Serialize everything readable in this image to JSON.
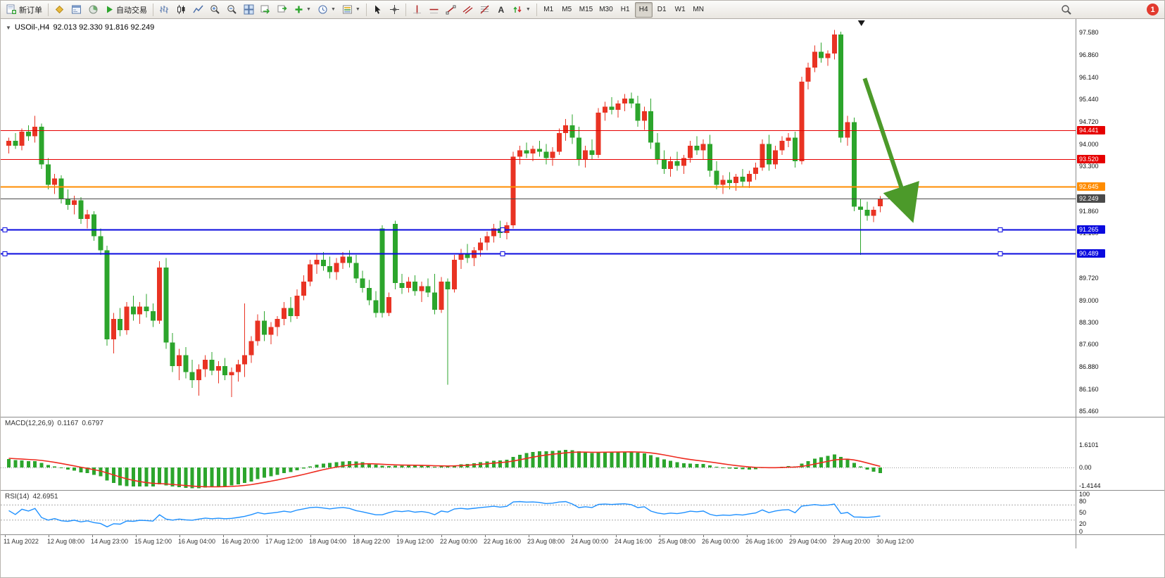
{
  "glyphs": {
    "chart_menu": "▼",
    "dropdown": "▼",
    "text_tool": "A"
  },
  "toolbar": {
    "new_order_label": "新订单",
    "autotrading_label": "自动交易",
    "badge": "1",
    "timeframes": [
      {
        "label": "M1",
        "active": false
      },
      {
        "label": "M5",
        "active": false
      },
      {
        "label": "M15",
        "active": false
      },
      {
        "label": "M30",
        "active": false
      },
      {
        "label": "H1",
        "active": false
      },
      {
        "label": "H4",
        "active": true
      },
      {
        "label": "D1",
        "active": false
      },
      {
        "label": "W1",
        "active": false
      },
      {
        "label": "MN",
        "active": false
      }
    ]
  },
  "chart": {
    "title": "USOil-,H4",
    "ohlc": "92.013 92.330 91.816 92.249",
    "colors": {
      "up": "#e93323",
      "down": "#2ca52c"
    }
  },
  "chart_data": {
    "type": "candlestick",
    "symbol": "USOil-",
    "period": "H4",
    "current_bar": {
      "open": 92.013,
      "high": 92.33,
      "low": 91.816,
      "close": 92.249
    },
    "y_axis_labels": [
      "97.580",
      "96.860",
      "96.140",
      "95.440",
      "94.720",
      "94.000",
      "93.300",
      "92.580",
      "91.860",
      "91.160",
      "90.440",
      "89.720",
      "89.000",
      "88.300",
      "87.600",
      "86.880",
      "86.160",
      "85.460"
    ],
    "time_labels": [
      "11 Aug 2022",
      "12 Aug 08:00",
      "14 Aug 23:00",
      "15 Aug 12:00",
      "16 Aug 04:00",
      "16 Aug 20:00",
      "17 Aug 12:00",
      "18 Aug 04:00",
      "18 Aug 22:00",
      "19 Aug 12:00",
      "22 Aug 00:00",
      "22 Aug 16:00",
      "23 Aug 08:00",
      "24 Aug 00:00",
      "24 Aug 16:00",
      "25 Aug 08:00",
      "26 Aug 00:00",
      "26 Aug 16:00",
      "29 Aug 04:00",
      "29 Aug 20:00",
      "30 Aug 12:00"
    ],
    "hlines": [
      {
        "price": 94.441,
        "label": "94.441",
        "color": "#e60000",
        "width": 1,
        "selected": false
      },
      {
        "price": 93.52,
        "label": "93.520",
        "color": "#e60000",
        "width": 1,
        "selected": false
      },
      {
        "price": 92.645,
        "label": "92.645",
        "color": "#ff8c00",
        "width": 2,
        "selected": false
      },
      {
        "price": 91.265,
        "label": "91.265",
        "color": "#0a0adf",
        "width": 2,
        "selected": true
      },
      {
        "price": 90.489,
        "label": "90.489",
        "color": "#0a0adf",
        "width": 2,
        "selected": true
      }
    ],
    "current_price": {
      "value": 92.249,
      "label": "92.249",
      "color": "#4a4a4a"
    },
    "arrow": {
      "from_index": 131,
      "from_price": 96.1,
      "to_index": 137.5,
      "to_price": 92.05,
      "color": "#4c9a2a"
    },
    "time_marker_index": 130.5,
    "candles": [
      [
        93.95,
        94.2,
        93.7,
        94.1
      ],
      [
        94.1,
        94.35,
        93.85,
        93.95
      ],
      [
        93.95,
        94.5,
        93.8,
        94.4
      ],
      [
        94.4,
        94.6,
        94.1,
        94.25
      ],
      [
        94.25,
        94.9,
        94.05,
        94.55
      ],
      [
        94.55,
        94.65,
        93.2,
        93.35
      ],
      [
        93.35,
        93.55,
        92.55,
        92.7
      ],
      [
        92.7,
        93.05,
        92.4,
        92.9
      ],
      [
        92.9,
        93.0,
        92.1,
        92.25
      ],
      [
        92.25,
        92.55,
        91.9,
        92.05
      ],
      [
        92.05,
        92.35,
        91.75,
        92.2
      ],
      [
        92.2,
        92.3,
        91.45,
        91.6
      ],
      [
        91.6,
        91.9,
        91.3,
        91.75
      ],
      [
        91.75,
        91.85,
        90.9,
        91.05
      ],
      [
        91.05,
        91.3,
        90.45,
        90.6
      ],
      [
        90.6,
        90.75,
        87.55,
        87.75
      ],
      [
        87.75,
        88.6,
        87.3,
        88.4
      ],
      [
        88.4,
        88.75,
        87.85,
        88.05
      ],
      [
        88.05,
        88.95,
        87.9,
        88.8
      ],
      [
        88.8,
        89.15,
        88.35,
        88.55
      ],
      [
        88.55,
        88.95,
        88.25,
        88.8
      ],
      [
        88.8,
        89.2,
        88.45,
        88.65
      ],
      [
        88.65,
        88.9,
        88.15,
        88.35
      ],
      [
        88.35,
        90.25,
        88.25,
        90.05
      ],
      [
        90.05,
        90.35,
        87.45,
        87.65
      ],
      [
        87.65,
        87.95,
        86.7,
        86.9
      ],
      [
        86.9,
        87.45,
        86.45,
        87.25
      ],
      [
        87.25,
        87.5,
        86.5,
        86.7
      ],
      [
        86.7,
        87.1,
        86.2,
        86.45
      ],
      [
        86.45,
        86.95,
        85.95,
        86.8
      ],
      [
        86.8,
        87.25,
        86.55,
        87.1
      ],
      [
        87.1,
        87.35,
        86.6,
        86.75
      ],
      [
        86.75,
        87.05,
        86.35,
        86.9
      ],
      [
        86.9,
        87.15,
        86.45,
        86.6
      ],
      [
        86.6,
        86.85,
        85.9,
        86.7
      ],
      [
        86.7,
        87.1,
        86.4,
        86.95
      ],
      [
        86.95,
        88.9,
        86.55,
        87.25
      ],
      [
        87.25,
        87.85,
        87.0,
        87.7
      ],
      [
        87.7,
        88.55,
        87.55,
        88.35
      ],
      [
        88.35,
        88.65,
        87.7,
        87.9
      ],
      [
        87.9,
        88.3,
        87.6,
        88.15
      ],
      [
        88.15,
        88.5,
        87.85,
        88.4
      ],
      [
        88.4,
        88.95,
        88.2,
        88.75
      ],
      [
        88.75,
        89.1,
        88.3,
        88.5
      ],
      [
        88.5,
        89.35,
        88.4,
        89.15
      ],
      [
        89.15,
        89.8,
        89.0,
        89.6
      ],
      [
        89.6,
        90.3,
        89.45,
        90.15
      ],
      [
        90.15,
        90.5,
        89.85,
        90.3
      ],
      [
        90.3,
        90.55,
        89.95,
        90.1
      ],
      [
        90.1,
        90.4,
        89.7,
        89.9
      ],
      [
        89.9,
        90.35,
        89.65,
        90.2
      ],
      [
        90.2,
        90.55,
        90.0,
        90.4
      ],
      [
        90.4,
        90.6,
        90.05,
        90.2
      ],
      [
        90.2,
        90.45,
        89.55,
        89.7
      ],
      [
        89.7,
        89.95,
        89.25,
        89.4
      ],
      [
        89.4,
        89.65,
        88.85,
        89.0
      ],
      [
        89.0,
        89.3,
        88.45,
        88.6
      ],
      [
        91.3,
        91.4,
        88.45,
        88.6
      ],
      [
        88.6,
        89.25,
        88.5,
        89.1
      ],
      [
        91.45,
        91.55,
        89.35,
        89.55
      ],
      [
        89.55,
        89.85,
        89.2,
        89.4
      ],
      [
        89.4,
        89.75,
        89.25,
        89.6
      ],
      [
        89.6,
        89.8,
        89.15,
        89.3
      ],
      [
        89.3,
        89.6,
        88.95,
        89.45
      ],
      [
        89.45,
        89.7,
        89.1,
        89.25
      ],
      [
        89.25,
        89.85,
        88.55,
        88.7
      ],
      [
        88.7,
        89.75,
        88.6,
        89.6
      ],
      [
        89.6,
        89.7,
        86.3,
        89.35
      ],
      [
        89.35,
        90.45,
        89.25,
        90.3
      ],
      [
        90.3,
        90.65,
        90.0,
        90.5
      ],
      [
        90.5,
        90.8,
        90.2,
        90.35
      ],
      [
        90.35,
        90.7,
        90.1,
        90.6
      ],
      [
        90.6,
        91.0,
        90.4,
        90.85
      ],
      [
        90.85,
        91.2,
        90.6,
        91.05
      ],
      [
        91.05,
        91.45,
        90.85,
        91.3
      ],
      [
        91.3,
        91.55,
        91.0,
        91.15
      ],
      [
        91.15,
        91.5,
        90.95,
        91.4
      ],
      [
        91.4,
        93.75,
        91.3,
        93.6
      ],
      [
        93.6,
        93.95,
        93.35,
        93.8
      ],
      [
        93.8,
        94.05,
        93.55,
        93.7
      ],
      [
        93.7,
        93.95,
        93.45,
        93.85
      ],
      [
        93.85,
        94.1,
        93.6,
        93.75
      ],
      [
        93.75,
        94.0,
        93.35,
        93.55
      ],
      [
        93.55,
        93.9,
        93.3,
        93.75
      ],
      [
        93.75,
        94.5,
        93.65,
        94.35
      ],
      [
        94.35,
        94.8,
        94.1,
        94.6
      ],
      [
        94.6,
        94.95,
        94.0,
        94.2
      ],
      [
        94.2,
        94.55,
        93.3,
        93.5
      ],
      [
        93.5,
        93.95,
        93.25,
        93.8
      ],
      [
        93.8,
        94.15,
        93.5,
        93.65
      ],
      [
        93.65,
        95.15,
        93.55,
        95.0
      ],
      [
        95.0,
        95.35,
        94.75,
        95.2
      ],
      [
        95.2,
        95.5,
        94.95,
        95.1
      ],
      [
        95.1,
        95.4,
        94.85,
        95.3
      ],
      [
        95.3,
        95.6,
        95.05,
        95.45
      ],
      [
        95.45,
        95.65,
        95.15,
        95.3
      ],
      [
        95.3,
        95.55,
        94.55,
        94.75
      ],
      [
        94.75,
        95.2,
        94.45,
        95.05
      ],
      [
        95.05,
        95.45,
        93.85,
        94.05
      ],
      [
        94.05,
        94.35,
        93.35,
        93.5
      ],
      [
        93.5,
        93.8,
        93.05,
        93.2
      ],
      [
        93.2,
        93.6,
        92.95,
        93.45
      ],
      [
        93.45,
        93.75,
        93.15,
        93.3
      ],
      [
        93.3,
        93.65,
        93.05,
        93.55
      ],
      [
        93.55,
        94.1,
        93.4,
        93.95
      ],
      [
        93.95,
        94.25,
        93.65,
        93.8
      ],
      [
        93.8,
        94.15,
        93.5,
        94.0
      ],
      [
        94.0,
        94.3,
        92.95,
        93.15
      ],
      [
        93.15,
        93.45,
        92.55,
        92.7
      ],
      [
        92.7,
        93.0,
        92.4,
        92.85
      ],
      [
        92.85,
        93.1,
        92.55,
        92.75
      ],
      [
        92.75,
        93.05,
        92.5,
        92.95
      ],
      [
        92.95,
        93.2,
        92.65,
        92.8
      ],
      [
        92.8,
        93.15,
        92.6,
        93.05
      ],
      [
        93.05,
        93.4,
        92.85,
        93.25
      ],
      [
        93.25,
        94.15,
        93.15,
        94.0
      ],
      [
        94.0,
        94.3,
        93.15,
        93.35
      ],
      [
        93.35,
        93.95,
        93.2,
        93.8
      ],
      [
        93.8,
        94.25,
        93.65,
        94.1
      ],
      [
        94.1,
        94.35,
        93.9,
        94.2
      ],
      [
        94.2,
        94.4,
        93.25,
        93.45
      ],
      [
        93.45,
        96.15,
        93.35,
        96.0
      ],
      [
        96.0,
        96.6,
        95.75,
        96.45
      ],
      [
        96.45,
        97.15,
        96.3,
        96.95
      ],
      [
        96.95,
        97.25,
        96.6,
        96.75
      ],
      [
        96.75,
        97.0,
        96.5,
        96.9
      ],
      [
        96.9,
        97.65,
        96.7,
        97.5
      ],
      [
        97.5,
        97.6,
        94.05,
        94.2
      ],
      [
        94.2,
        94.9,
        93.95,
        94.7
      ],
      [
        94.7,
        94.85,
        91.85,
        92.0
      ],
      [
        92.0,
        92.25,
        90.45,
        91.9
      ],
      [
        91.9,
        92.15,
        91.55,
        91.7
      ],
      [
        91.7,
        92.0,
        91.5,
        91.9
      ],
      [
        92.013,
        92.33,
        91.816,
        92.249
      ]
    ]
  },
  "macd": {
    "name": "MACD(12,26,9)",
    "value_main": "0.1167",
    "value_signal": "0.6797",
    "axis": [
      "1.6101",
      "0.00",
      "-1.4144"
    ],
    "hist_color": "#2ca52c",
    "signal_color": "#ee2b1f"
  },
  "rsi": {
    "name": "RSI(14)",
    "value": "42.6951",
    "axis": [
      "100",
      "80",
      "50",
      "20",
      "0"
    ],
    "levels": [
      70,
      30
    ],
    "line_color": "#1e90ff"
  }
}
